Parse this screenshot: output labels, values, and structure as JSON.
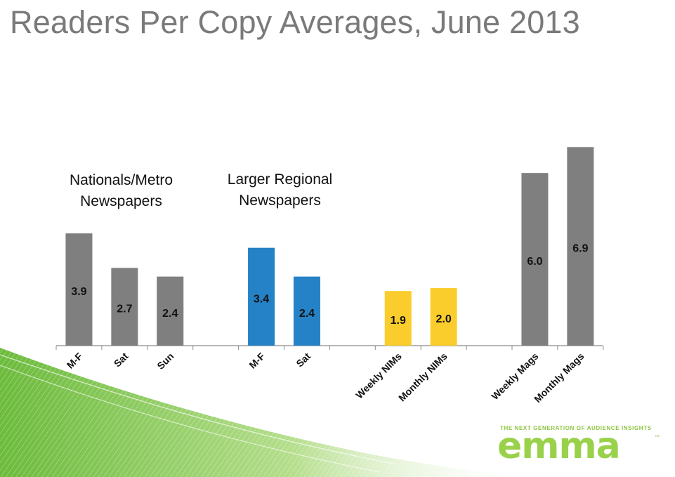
{
  "title": "Readers Per Copy Averages, June 2013",
  "colors": {
    "gray": "#7f7f7f",
    "blue": "#2582c6",
    "yellow": "#fbcd2c",
    "swoosh": "#7cc242"
  },
  "group_labels": [
    {
      "text": "Nationals/Metro\nNewspapers"
    },
    {
      "text": "Larger Regional\nNewspapers"
    }
  ],
  "logo": {
    "tagline": "THE NEXT GENERATION OF AUDIENCE INSIGHTS",
    "brand": "emma",
    "tm": "™"
  },
  "chart_data": {
    "type": "bar",
    "categories": [
      "M-F",
      "Sat",
      "Sun",
      "",
      "M-F",
      "Sat",
      "",
      "Weekly NIMs",
      "Monthly NIMs",
      "",
      "Weekly Mags",
      "Monthly Mags"
    ],
    "values": [
      3.9,
      2.7,
      2.4,
      null,
      3.4,
      2.4,
      null,
      1.9,
      2.0,
      null,
      6.0,
      6.9
    ],
    "labels": [
      "3.9",
      "2.7",
      "2.4",
      "",
      "3.4",
      "2.4",
      "",
      "1.9",
      "2.0",
      "",
      "6.0",
      "6.9"
    ],
    "bar_colors": [
      "gray",
      "gray",
      "gray",
      "",
      "blue",
      "blue",
      "",
      "yellow",
      "yellow",
      "",
      "gray",
      "gray"
    ],
    "title": "",
    "xlabel": "",
    "ylabel": "",
    "ylim": [
      0,
      7.2
    ],
    "grid": false,
    "legend": "none"
  }
}
